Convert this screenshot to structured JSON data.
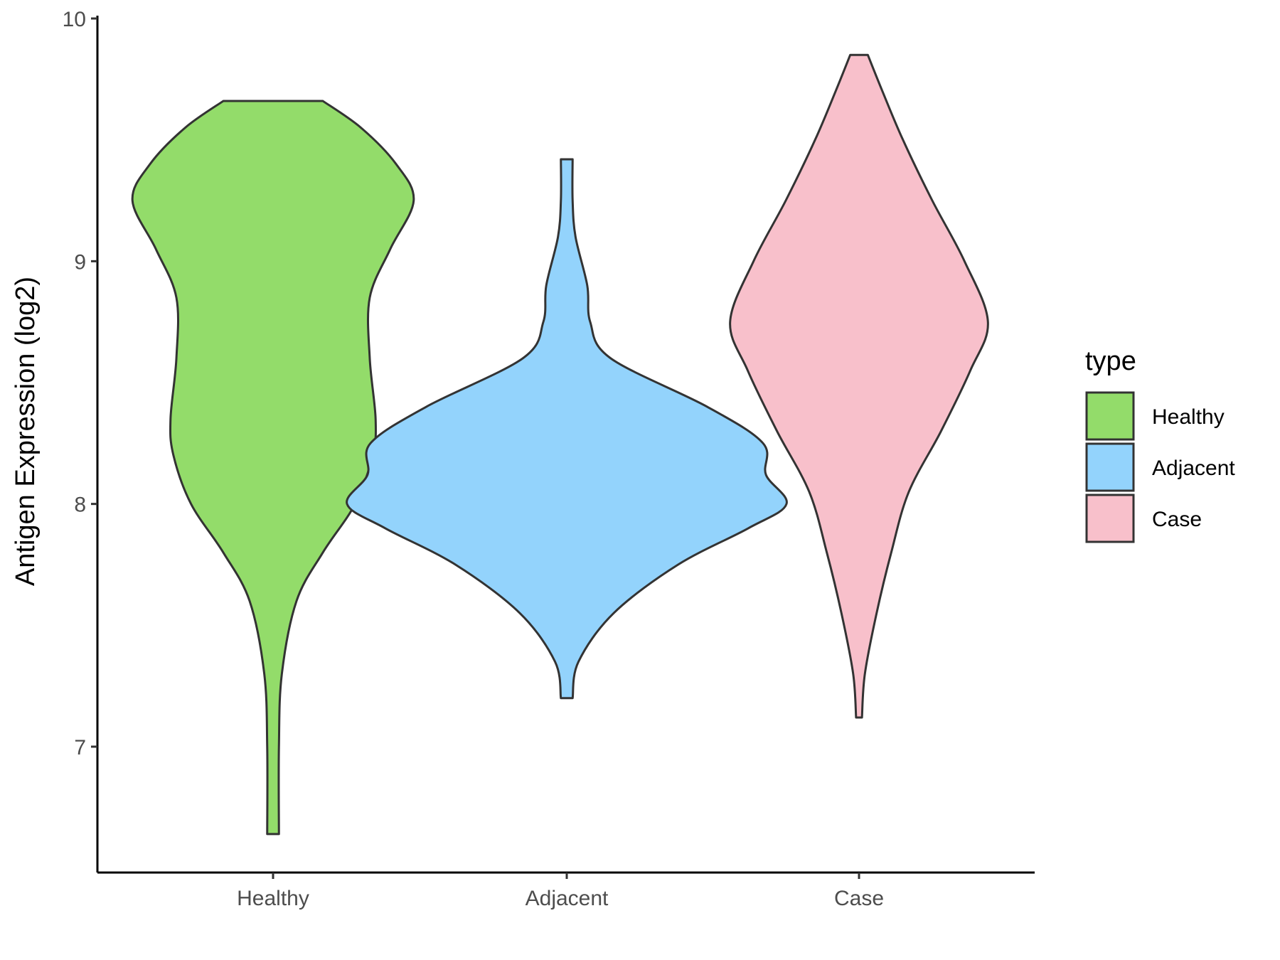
{
  "chart_data": {
    "type": "violin",
    "ylabel": "Antigen Expression (log2)",
    "xlabel": "",
    "ylim": [
      6.5,
      10
    ],
    "yticks": [
      7,
      8,
      9,
      10
    ],
    "categories": [
      "Healthy",
      "Adjacent",
      "Case"
    ],
    "legend": {
      "title": "type",
      "position": "right",
      "entries": [
        "Healthy",
        "Adjacent",
        "Case"
      ]
    },
    "grid": false,
    "series": [
      {
        "category": "Healthy",
        "color": "#93dc6a",
        "min": 6.64,
        "max": 9.66,
        "density_profile": [
          {
            "y": 6.64,
            "halfwidth": 0.02
          },
          {
            "y": 7.0,
            "halfwidth": 0.02
          },
          {
            "y": 7.3,
            "halfwidth": 0.03
          },
          {
            "y": 7.6,
            "halfwidth": 0.08
          },
          {
            "y": 7.8,
            "halfwidth": 0.17
          },
          {
            "y": 8.0,
            "halfwidth": 0.28
          },
          {
            "y": 8.2,
            "halfwidth": 0.34
          },
          {
            "y": 8.35,
            "halfwidth": 0.35
          },
          {
            "y": 8.6,
            "halfwidth": 0.33
          },
          {
            "y": 8.85,
            "halfwidth": 0.33
          },
          {
            "y": 9.05,
            "halfwidth": 0.4
          },
          {
            "y": 9.25,
            "halfwidth": 0.48
          },
          {
            "y": 9.4,
            "halfwidth": 0.42
          },
          {
            "y": 9.55,
            "halfwidth": 0.3
          },
          {
            "y": 9.66,
            "halfwidth": 0.17
          }
        ]
      },
      {
        "category": "Adjacent",
        "color": "#93d3fc",
        "min": 7.2,
        "max": 9.42,
        "density_profile": [
          {
            "y": 7.2,
            "halfwidth": 0.02
          },
          {
            "y": 7.35,
            "halfwidth": 0.04
          },
          {
            "y": 7.55,
            "halfwidth": 0.16
          },
          {
            "y": 7.75,
            "halfwidth": 0.38
          },
          {
            "y": 7.9,
            "halfwidth": 0.62
          },
          {
            "y": 8.0,
            "halfwidth": 0.75
          },
          {
            "y": 8.12,
            "halfwidth": 0.68
          },
          {
            "y": 8.25,
            "halfwidth": 0.67
          },
          {
            "y": 8.4,
            "halfwidth": 0.48
          },
          {
            "y": 8.6,
            "halfwidth": 0.15
          },
          {
            "y": 8.75,
            "halfwidth": 0.08
          },
          {
            "y": 8.9,
            "halfwidth": 0.07
          },
          {
            "y": 9.1,
            "halfwidth": 0.03
          },
          {
            "y": 9.25,
            "halfwidth": 0.02
          },
          {
            "y": 9.42,
            "halfwidth": 0.02
          }
        ]
      },
      {
        "category": "Case",
        "color": "#f8c0cb",
        "min": 7.12,
        "max": 9.85,
        "density_profile": [
          {
            "y": 7.12,
            "halfwidth": 0.01
          },
          {
            "y": 7.3,
            "halfwidth": 0.02
          },
          {
            "y": 7.55,
            "halfwidth": 0.06
          },
          {
            "y": 7.8,
            "halfwidth": 0.11
          },
          {
            "y": 8.05,
            "halfwidth": 0.17
          },
          {
            "y": 8.3,
            "halfwidth": 0.28
          },
          {
            "y": 8.55,
            "halfwidth": 0.38
          },
          {
            "y": 8.75,
            "halfwidth": 0.44
          },
          {
            "y": 9.0,
            "halfwidth": 0.36
          },
          {
            "y": 9.25,
            "halfwidth": 0.25
          },
          {
            "y": 9.5,
            "halfwidth": 0.15
          },
          {
            "y": 9.7,
            "halfwidth": 0.08
          },
          {
            "y": 9.85,
            "halfwidth": 0.03
          }
        ]
      }
    ]
  }
}
